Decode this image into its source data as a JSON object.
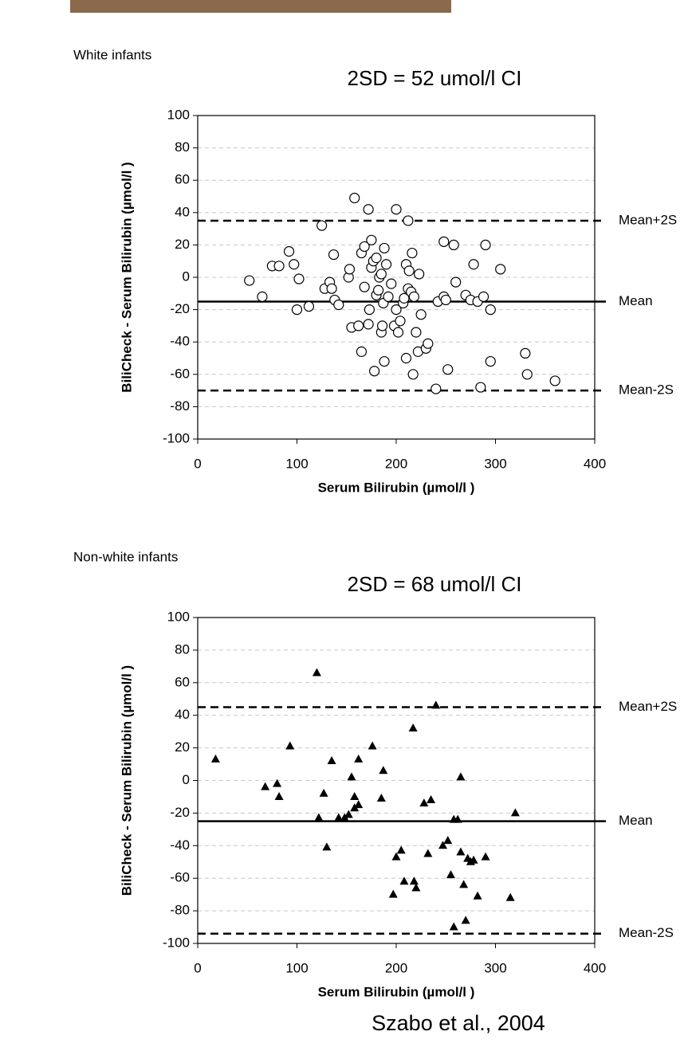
{
  "chart_data": [
    {
      "type": "scatter",
      "title": "White infants",
      "subtitle": "2SD = 52 umol/l CI",
      "x_label": "Serum Bilirubin (µmol/l )",
      "y_label": "BiliCheck - Serum Bilirubin (µmol/l )",
      "marker": "circle",
      "color": "#000000",
      "x": [
        52,
        65,
        75,
        82,
        92,
        97,
        100,
        102,
        112,
        125,
        128,
        133,
        135,
        137,
        138,
        142,
        152,
        153,
        155,
        158,
        162,
        165,
        165,
        168,
        168,
        172,
        172,
        173,
        175,
        175,
        177,
        178,
        180,
        180,
        182,
        183,
        185,
        185,
        186,
        187,
        188,
        188,
        190,
        192,
        195,
        198,
        200,
        200,
        202,
        204,
        207,
        208,
        210,
        210,
        212,
        212,
        213,
        215,
        216,
        217,
        218,
        220,
        222,
        223,
        225,
        230,
        232,
        240,
        242,
        248,
        248,
        250,
        252,
        258,
        260,
        270,
        275,
        278,
        282,
        285,
        288,
        290,
        295,
        295,
        305,
        330,
        332,
        360
      ],
      "values": [
        -2,
        -12,
        7,
        7,
        16,
        8,
        -20,
        -1,
        -18,
        32,
        -7,
        -3,
        -7,
        14,
        -14,
        -17,
        0,
        5,
        -31,
        49,
        -30,
        -46,
        15,
        -6,
        19,
        -29,
        42,
        -20,
        23,
        6,
        10,
        -58,
        -11,
        12,
        -8,
        0,
        -34,
        2,
        -30,
        -16,
        18,
        -52,
        8,
        -12,
        -4,
        -30,
        42,
        -20,
        -34,
        -27,
        -16,
        -13,
        -50,
        8,
        35,
        -7,
        4,
        -9,
        15,
        -60,
        -12,
        -34,
        -46,
        2,
        -23,
        -44,
        -41,
        -69,
        -15,
        -12,
        22,
        -14,
        -57,
        20,
        -3,
        -11,
        -14,
        8,
        -15,
        -68,
        -12,
        20,
        -20,
        -52,
        5,
        -47,
        -60,
        -64
      ],
      "xlim": [
        0,
        400
      ],
      "xticks": [
        0,
        100,
        200,
        300,
        400
      ],
      "ylim": [
        -100,
        100
      ],
      "yticks": [
        -100,
        -80,
        -60,
        -40,
        -20,
        0,
        20,
        40,
        60,
        80,
        100
      ],
      "grid": true,
      "reference_lines": [
        {
          "label": "Mean+2S",
          "value": 35,
          "style": "dashed"
        },
        {
          "label": "Mean",
          "value": -15,
          "style": "solid"
        },
        {
          "label": "Mean-2S",
          "value": -70,
          "style": "dashed"
        }
      ]
    },
    {
      "type": "scatter",
      "title": "Non-white infants",
      "subtitle": "2SD = 68 umol/l CI",
      "x_label": "Serum Bilirubin (µmol/l )",
      "y_label": "BiliCheck - Serum Bilirubin (µmol/l )",
      "marker": "triangle",
      "color": "#000000",
      "x": [
        18,
        68,
        80,
        82,
        93,
        120,
        122,
        127,
        130,
        135,
        142,
        148,
        152,
        155,
        158,
        158,
        162,
        162,
        176,
        185,
        187,
        197,
        200,
        205,
        208,
        217,
        218,
        220,
        228,
        232,
        235,
        240,
        247,
        252,
        255,
        258,
        258,
        262,
        265,
        265,
        268,
        270,
        272,
        275,
        278,
        282,
        290,
        315,
        320
      ],
      "values": [
        13,
        -4,
        -2,
        -10,
        21,
        66,
        -23,
        -8,
        -41,
        12,
        -23,
        -23,
        -21,
        2,
        -10,
        -17,
        -15,
        13,
        21,
        -11,
        6,
        -70,
        -47,
        -43,
        -62,
        32,
        -62,
        -66,
        -14,
        -45,
        -12,
        46,
        -40,
        -37,
        -58,
        -24,
        -90,
        -24,
        2,
        -44,
        -64,
        -86,
        -48,
        -50,
        -49,
        -71,
        -47,
        -72,
        -20
      ],
      "xlim": [
        0,
        400
      ],
      "xticks": [
        0,
        100,
        200,
        300,
        400
      ],
      "ylim": [
        -100,
        100
      ],
      "yticks": [
        -100,
        -80,
        -60,
        -40,
        -20,
        0,
        20,
        40,
        60,
        80,
        100
      ],
      "grid": true,
      "reference_lines": [
        {
          "label": "Mean+2S",
          "value": 45,
          "style": "dashed"
        },
        {
          "label": "Mean",
          "value": -25,
          "style": "solid"
        },
        {
          "label": "Mean-2S",
          "value": -94,
          "style": "dashed"
        }
      ]
    }
  ],
  "citation": "Szabo et al., 2004"
}
